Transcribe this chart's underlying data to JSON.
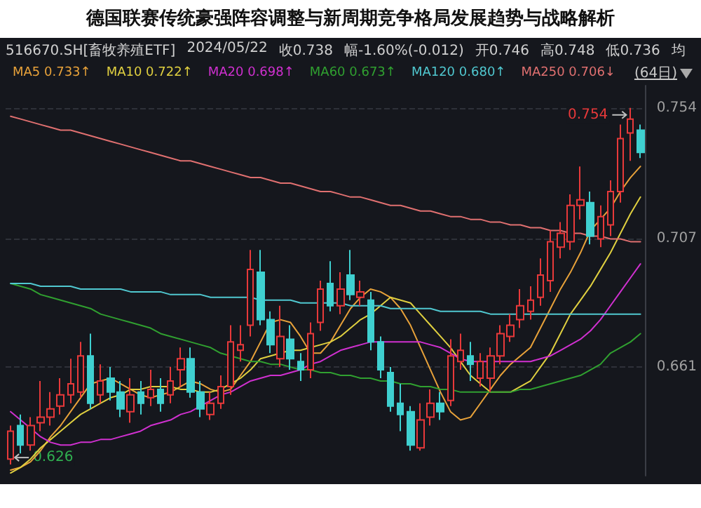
{
  "chart_data": {
    "type": "candlestick",
    "title": "德国联赛传统豪强阵容调整与新周期竞争格局发展趋势与战略解析",
    "annotations": [
      "516670.SH[畜牧养殖ETF]",
      "2024/05/22",
      "收0.738",
      "幅-1.60%(-0.012)",
      "开0.746",
      "高0.748",
      "低0.736",
      "均",
      "0.754",
      "0.626",
      "(64日)"
    ],
    "categories": [
      null,
      null,
      null,
      null,
      null,
      null,
      null,
      null,
      null,
      null,
      null,
      null,
      null,
      null,
      null,
      null,
      null,
      null,
      null,
      null,
      null,
      null,
      null,
      null,
      null,
      null,
      null,
      null,
      null,
      null,
      null,
      null,
      null,
      null,
      null,
      null,
      null,
      null,
      null,
      null,
      null,
      null,
      null,
      null,
      null,
      null,
      null,
      null,
      null,
      null,
      null,
      null,
      null,
      null,
      null,
      null,
      null,
      null,
      null,
      null,
      null,
      null,
      null,
      null
    ],
    "ohlc": [
      [
        0.628,
        0.64,
        0.626,
        0.638
      ],
      [
        0.64,
        0.644,
        0.63,
        0.633
      ],
      [
        0.633,
        0.643,
        0.631,
        0.64
      ],
      [
        0.641,
        0.656,
        0.638,
        0.643
      ],
      [
        0.643,
        0.652,
        0.64,
        0.646
      ],
      [
        0.647,
        0.657,
        0.644,
        0.651
      ],
      [
        0.651,
        0.664,
        0.648,
        0.655
      ],
      [
        0.652,
        0.67,
        0.65,
        0.665
      ],
      [
        0.665,
        0.673,
        0.646,
        0.648
      ],
      [
        0.651,
        0.662,
        0.648,
        0.656
      ],
      [
        0.657,
        0.661,
        0.649,
        0.652
      ],
      [
        0.652,
        0.656,
        0.643,
        0.646
      ],
      [
        0.645,
        0.657,
        0.641,
        0.651
      ],
      [
        0.652,
        0.656,
        0.644,
        0.648
      ],
      [
        0.65,
        0.66,
        0.647,
        0.653
      ],
      [
        0.653,
        0.657,
        0.645,
        0.648
      ],
      [
        0.651,
        0.661,
        0.648,
        0.656
      ],
      [
        0.66,
        0.668,
        0.654,
        0.664
      ],
      [
        0.664,
        0.668,
        0.65,
        0.652
      ],
      [
        0.652,
        0.656,
        0.643,
        0.646
      ],
      [
        0.644,
        0.652,
        0.642,
        0.648
      ],
      [
        0.648,
        0.658,
        0.646,
        0.654
      ],
      [
        0.654,
        0.676,
        0.651,
        0.67
      ],
      [
        0.667,
        0.676,
        0.663,
        0.669
      ],
      [
        0.676,
        0.703,
        0.672,
        0.696
      ],
      [
        0.695,
        0.703,
        0.676,
        0.678
      ],
      [
        0.678,
        0.681,
        0.666,
        0.669
      ],
      [
        0.664,
        0.683,
        0.661,
        0.672
      ],
      [
        0.671,
        0.676,
        0.66,
        0.664
      ],
      [
        0.663,
        0.666,
        0.656,
        0.66
      ],
      [
        0.66,
        0.677,
        0.657,
        0.673
      ],
      [
        0.677,
        0.692,
        0.674,
        0.689
      ],
      [
        0.691,
        0.699,
        0.681,
        0.683
      ],
      [
        0.683,
        0.695,
        0.68,
        0.689
      ],
      [
        0.694,
        0.703,
        0.685,
        0.687
      ],
      [
        0.686,
        0.692,
        0.683,
        0.688
      ],
      [
        0.685,
        0.688,
        0.667,
        0.67
      ],
      [
        0.67,
        0.672,
        0.657,
        0.66
      ],
      [
        0.659,
        0.661,
        0.645,
        0.647
      ],
      [
        0.648,
        0.655,
        0.638,
        0.644
      ],
      [
        0.645,
        0.647,
        0.631,
        0.633
      ],
      [
        0.632,
        0.648,
        0.631,
        0.642
      ],
      [
        0.643,
        0.653,
        0.64,
        0.648
      ],
      [
        0.648,
        0.652,
        0.642,
        0.645
      ],
      [
        0.649,
        0.671,
        0.647,
        0.665
      ],
      [
        0.663,
        0.673,
        0.66,
        0.667
      ],
      [
        0.665,
        0.67,
        0.656,
        0.662
      ],
      [
        0.657,
        0.666,
        0.654,
        0.663
      ],
      [
        0.657,
        0.668,
        0.652,
        0.665
      ],
      [
        0.665,
        0.676,
        0.662,
        0.673
      ],
      [
        0.672,
        0.68,
        0.67,
        0.676
      ],
      [
        0.678,
        0.689,
        0.675,
        0.683
      ],
      [
        0.681,
        0.69,
        0.678,
        0.685
      ],
      [
        0.686,
        0.7,
        0.683,
        0.694
      ],
      [
        0.692,
        0.71,
        0.688,
        0.706
      ],
      [
        0.704,
        0.713,
        0.7,
        0.709
      ],
      [
        0.706,
        0.723,
        0.703,
        0.719
      ],
      [
        0.719,
        0.733,
        0.714,
        0.721
      ],
      [
        0.72,
        0.724,
        0.705,
        0.708
      ],
      [
        0.707,
        0.719,
        0.704,
        0.715
      ],
      [
        0.712,
        0.728,
        0.708,
        0.724
      ],
      [
        0.724,
        0.748,
        0.72,
        0.743
      ],
      [
        0.745,
        0.754,
        0.735,
        0.75
      ],
      [
        0.746,
        0.748,
        0.736,
        0.738
      ]
    ],
    "colors": [
      "#e8393a",
      "#3fd0d0",
      "#e8393a",
      "#e8393a",
      "#e8393a",
      "#e8393a",
      "#e8393a",
      "#e8393a",
      "#3fd0d0",
      "#e8393a",
      "#3fd0d0",
      "#3fd0d0",
      "#e8393a",
      "#3fd0d0",
      "#e8393a",
      "#3fd0d0",
      "#e8393a",
      "#e8393a",
      "#3fd0d0",
      "#3fd0d0",
      "#e8393a",
      "#e8393a",
      "#e8393a",
      "#e8393a",
      "#e8393a",
      "#3fd0d0",
      "#3fd0d0",
      "#e8393a",
      "#3fd0d0",
      "#3fd0d0",
      "#e8393a",
      "#e8393a",
      "#3fd0d0",
      "#e8393a",
      "#3fd0d0",
      "#e8393a",
      "#3fd0d0",
      "#3fd0d0",
      "#3fd0d0",
      "#3fd0d0",
      "#3fd0d0",
      "#e8393a",
      "#e8393a",
      "#3fd0d0",
      "#e8393a",
      "#e8393a",
      "#3fd0d0",
      "#e8393a",
      "#e8393a",
      "#e8393a",
      "#e8393a",
      "#e8393a",
      "#e8393a",
      "#e8393a",
      "#e8393a",
      "#e8393a",
      "#e8393a",
      "#e8393a",
      "#3fd0d0",
      "#e8393a",
      "#e8393a",
      "#e8393a",
      "#e8393a",
      "#3fd0d0"
    ],
    "series": [
      {
        "type": "line",
        "name": "MA5 0.733↑",
        "color": "#e8a23a",
        "values": [
          0.624,
          0.625,
          0.627,
          0.631,
          0.636,
          0.64,
          0.645,
          0.65,
          0.655,
          0.656,
          0.657,
          0.655,
          0.653,
          0.651,
          0.65,
          0.651,
          0.652,
          0.654,
          0.656,
          0.655,
          0.653,
          0.652,
          0.653,
          0.658,
          0.663,
          0.67,
          0.677,
          0.678,
          0.677,
          0.672,
          0.666,
          0.666,
          0.67,
          0.676,
          0.682,
          0.686,
          0.689,
          0.688,
          0.686,
          0.682,
          0.676,
          0.668,
          0.66,
          0.652,
          0.645,
          0.642,
          0.643,
          0.648,
          0.653,
          0.658,
          0.662,
          0.665,
          0.668,
          0.675,
          0.682,
          0.689,
          0.695,
          0.702,
          0.71,
          0.714,
          0.718,
          0.724,
          0.729,
          0.733
        ]
      },
      {
        "type": "line",
        "name": "MA10 0.722↑",
        "color": "#e0d040",
        "values": [
          0.623,
          0.625,
          0.628,
          0.632,
          0.635,
          0.638,
          0.641,
          0.644,
          0.646,
          0.648,
          0.65,
          0.651,
          0.653,
          0.653,
          0.654,
          0.654,
          0.654,
          0.653,
          0.653,
          0.652,
          0.652,
          0.653,
          0.655,
          0.657,
          0.66,
          0.664,
          0.665,
          0.666,
          0.667,
          0.667,
          0.668,
          0.669,
          0.67,
          0.672,
          0.675,
          0.678,
          0.68,
          0.683,
          0.686,
          0.685,
          0.684,
          0.68,
          0.676,
          0.672,
          0.668,
          0.663,
          0.658,
          0.655,
          0.652,
          0.652,
          0.652,
          0.654,
          0.656,
          0.661,
          0.666,
          0.673,
          0.68,
          0.685,
          0.69,
          0.696,
          0.702,
          0.709,
          0.716,
          0.722
        ]
      },
      {
        "type": "line",
        "name": "MA20 0.698↑",
        "color": "#d030d0",
        "values": [
          0.645,
          0.642,
          0.639,
          0.636,
          0.634,
          0.633,
          0.633,
          0.634,
          0.634,
          0.635,
          0.635,
          0.636,
          0.637,
          0.638,
          0.64,
          0.641,
          0.642,
          0.644,
          0.645,
          0.647,
          0.649,
          0.651,
          0.652,
          0.654,
          0.656,
          0.657,
          0.658,
          0.658,
          0.659,
          0.66,
          0.662,
          0.663,
          0.665,
          0.667,
          0.668,
          0.669,
          0.67,
          0.67,
          0.67,
          0.67,
          0.67,
          0.67,
          0.669,
          0.668,
          0.666,
          0.664,
          0.663,
          0.663,
          0.663,
          0.663,
          0.663,
          0.663,
          0.663,
          0.664,
          0.665,
          0.667,
          0.669,
          0.671,
          0.674,
          0.678,
          0.683,
          0.688,
          0.693,
          0.698
        ]
      },
      {
        "type": "line",
        "name": "MA60 0.673↑",
        "color": "#30a030",
        "values": [
          0.691,
          0.69,
          0.689,
          0.687,
          0.686,
          0.685,
          0.684,
          0.683,
          0.682,
          0.68,
          0.679,
          0.678,
          0.677,
          0.676,
          0.675,
          0.673,
          0.672,
          0.671,
          0.67,
          0.669,
          0.668,
          0.666,
          0.665,
          0.664,
          0.663,
          0.663,
          0.662,
          0.662,
          0.661,
          0.66,
          0.66,
          0.659,
          0.659,
          0.658,
          0.658,
          0.657,
          0.657,
          0.656,
          0.656,
          0.655,
          0.655,
          0.654,
          0.654,
          0.653,
          0.653,
          0.652,
          0.652,
          0.652,
          0.652,
          0.652,
          0.652,
          0.653,
          0.653,
          0.654,
          0.655,
          0.656,
          0.657,
          0.658,
          0.66,
          0.662,
          0.666,
          0.668,
          0.67,
          0.673
        ]
      },
      {
        "type": "line",
        "name": "MA120 0.680↑",
        "color": "#50c8d0",
        "values": [
          0.691,
          0.691,
          0.691,
          0.69,
          0.69,
          0.69,
          0.69,
          0.689,
          0.689,
          0.689,
          0.689,
          0.689,
          0.688,
          0.688,
          0.688,
          0.688,
          0.687,
          0.687,
          0.687,
          0.687,
          0.686,
          0.686,
          0.686,
          0.686,
          0.686,
          0.685,
          0.685,
          0.685,
          0.685,
          0.684,
          0.684,
          0.684,
          0.684,
          0.684,
          0.683,
          0.683,
          0.683,
          0.683,
          0.682,
          0.682,
          0.682,
          0.682,
          0.682,
          0.681,
          0.681,
          0.681,
          0.681,
          0.681,
          0.68,
          0.68,
          0.68,
          0.68,
          0.68,
          0.68,
          0.68,
          0.68,
          0.68,
          0.68,
          0.68,
          0.68,
          0.68,
          0.68,
          0.68,
          0.68
        ]
      },
      {
        "type": "line",
        "name": "MA250 0.706↓",
        "color": "#e07070",
        "values": [
          0.751,
          0.75,
          0.749,
          0.748,
          0.747,
          0.746,
          0.746,
          0.745,
          0.744,
          0.743,
          0.742,
          0.741,
          0.74,
          0.739,
          0.738,
          0.737,
          0.736,
          0.735,
          0.735,
          0.734,
          0.733,
          0.732,
          0.731,
          0.73,
          0.729,
          0.729,
          0.728,
          0.727,
          0.727,
          0.726,
          0.725,
          0.724,
          0.724,
          0.723,
          0.722,
          0.722,
          0.721,
          0.72,
          0.719,
          0.719,
          0.718,
          0.717,
          0.717,
          0.716,
          0.715,
          0.715,
          0.714,
          0.714,
          0.713,
          0.713,
          0.712,
          0.712,
          0.711,
          0.711,
          0.71,
          0.71,
          0.709,
          0.709,
          0.708,
          0.708,
          0.707,
          0.707,
          0.706,
          0.706
        ]
      }
    ],
    "ylim": [
      0.622,
      0.762
    ],
    "yticks": [
      0.661,
      0.707,
      0.754
    ],
    "grid": "y",
    "legend": "top left",
    "tick_labels": "y",
    "line_style": "solid"
  }
}
